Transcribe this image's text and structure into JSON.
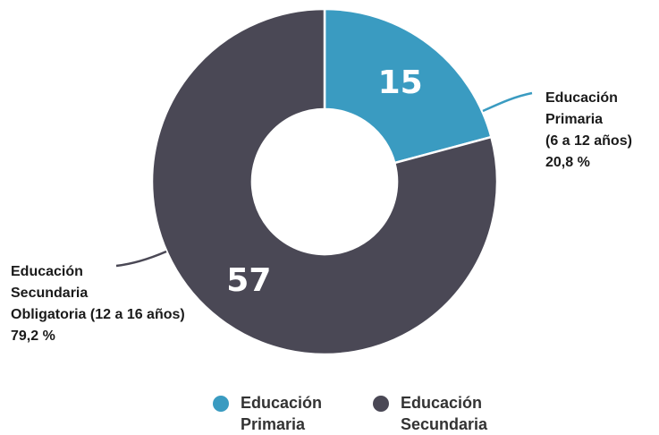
{
  "chart_data": {
    "type": "pie",
    "title": "",
    "categories": [
      "Educación Primaria",
      "Educación Secundaria"
    ],
    "values": [
      15,
      57
    ],
    "colors": [
      "#3a9bc1",
      "#4a4855"
    ],
    "inner_radius_ratio": 0.42,
    "callouts": [
      {
        "lines": [
          "Educación",
          "Primaria",
          "(6 a 12 años)",
          "20,8 %"
        ]
      },
      {
        "lines": [
          "Educación",
          "Secundaria",
          "Obligatoria (12 a 16 años)",
          "79,2 %"
        ]
      }
    ],
    "legend": {
      "position": "bottom",
      "items": [
        {
          "lines": [
            "Educación",
            "Primaria"
          ]
        },
        {
          "lines": [
            "Educación",
            "Secundaria"
          ]
        }
      ]
    }
  }
}
